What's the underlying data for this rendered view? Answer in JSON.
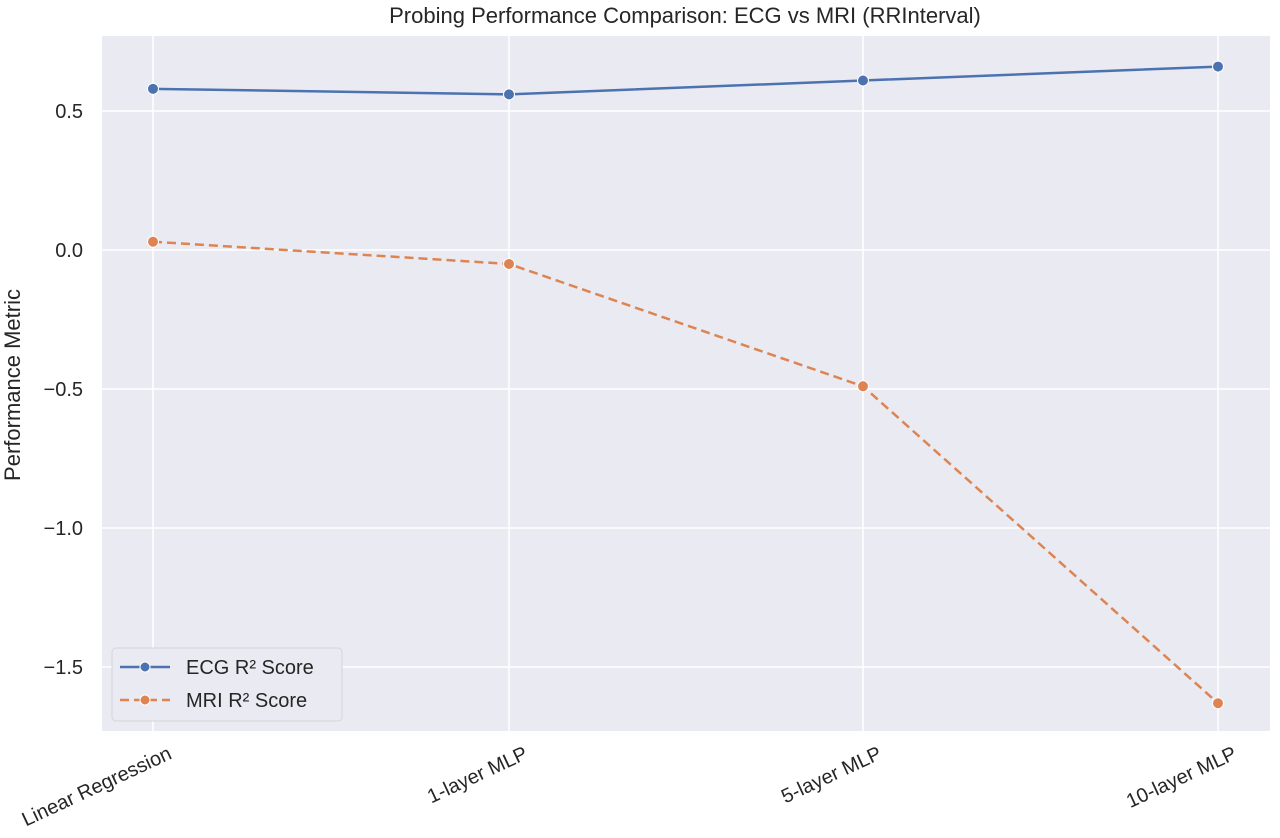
{
  "chart_data": {
    "type": "line",
    "title": "Probing Performance Comparison: ECG vs MRI (RRInterval)",
    "xlabel": "",
    "ylabel": "Performance Metric",
    "categories": [
      "Linear Regression",
      "1-layer MLP",
      "5-layer MLP",
      "10-layer MLP"
    ],
    "series": [
      {
        "name": "ECG R² Score",
        "values": [
          0.58,
          0.56,
          0.61,
          0.66
        ],
        "color": "#4c72b0",
        "style": "solid",
        "marker": "circle"
      },
      {
        "name": "MRI R² Score",
        "values": [
          0.03,
          -0.05,
          -0.49,
          -1.63
        ],
        "color": "#dd8452",
        "style": "dashed",
        "marker": "circle"
      }
    ],
    "ylim": [
      -1.73,
      0.77
    ],
    "yticks": [
      0.5,
      0.0,
      -0.5,
      -1.0,
      -1.5
    ],
    "ytick_labels": [
      "0.5",
      "0.0",
      "−0.5",
      "−1.0",
      "−1.5"
    ],
    "grid": true,
    "background": "#eaeaf2",
    "legend_position": "lower-left"
  }
}
